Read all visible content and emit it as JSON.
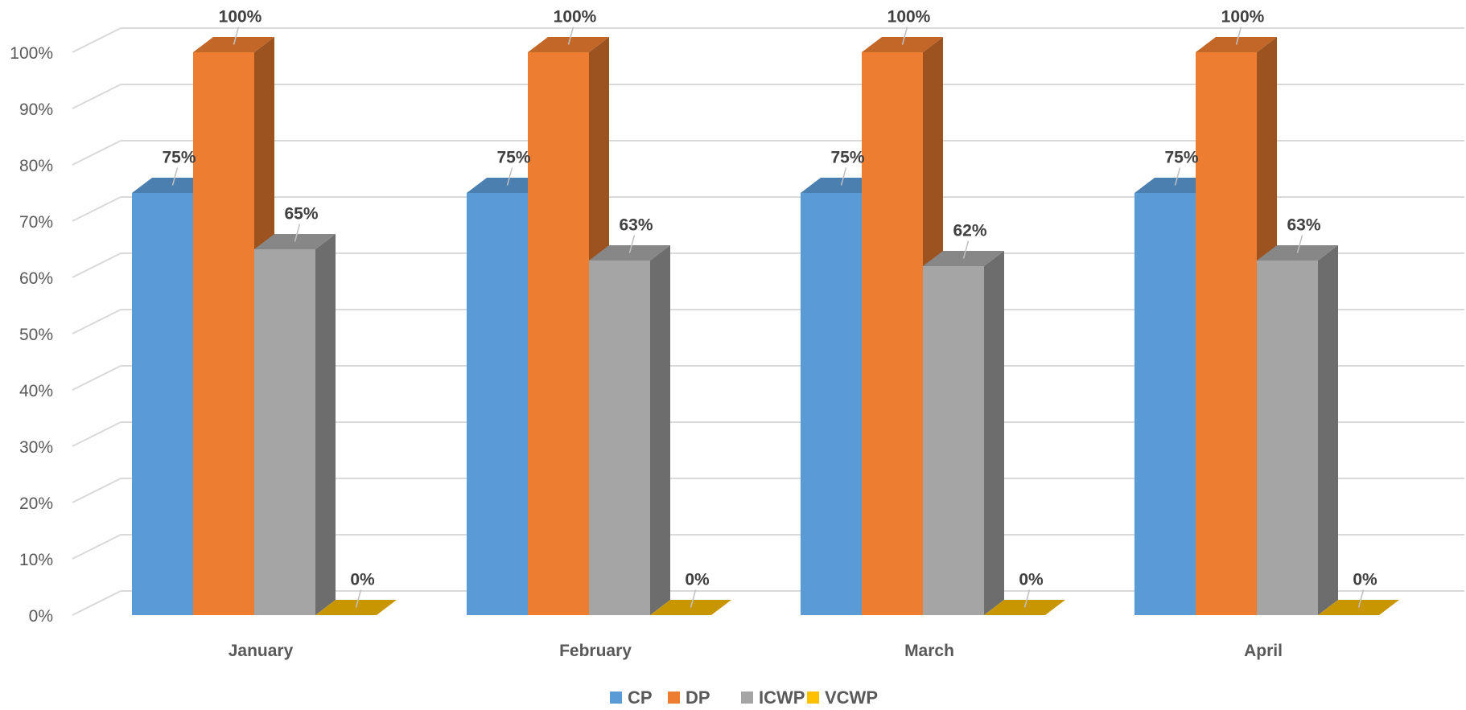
{
  "chart_data": {
    "type": "bar",
    "title": "",
    "xlabel": "",
    "ylabel": "",
    "categories": [
      "January",
      "February",
      "March",
      "April"
    ],
    "series": [
      {
        "name": "CP",
        "values": [
          75,
          75,
          75,
          75
        ],
        "color": "#5B9BD5",
        "data_labels": [
          "75%",
          "75%",
          "75%",
          "75%"
        ]
      },
      {
        "name": "DP",
        "values": [
          100,
          100,
          100,
          100
        ],
        "color": "#ED7D31",
        "data_labels": [
          "100%",
          "100%",
          "100%",
          "100%"
        ]
      },
      {
        "name": "ICWP",
        "values": [
          65,
          63,
          62,
          63
        ],
        "color": "#A5A5A5",
        "data_labels": [
          "65%",
          "63%",
          "62%",
          "63%"
        ]
      },
      {
        "name": "VCWP",
        "values": [
          0,
          0,
          0,
          0
        ],
        "color": "#FFC000",
        "data_labels": [
          "0%",
          "0%",
          "0%",
          "0%"
        ]
      }
    ],
    "ylim": [
      0,
      100
    ],
    "y_ticks": [
      0,
      10,
      20,
      30,
      40,
      50,
      60,
      70,
      80,
      90,
      100
    ],
    "y_tick_labels": [
      "0%",
      "10%",
      "20%",
      "30%",
      "40%",
      "50%",
      "60%",
      "70%",
      "80%",
      "90%",
      "100%"
    ],
    "grid": true,
    "three_d": true,
    "legend": {
      "position": "bottom"
    },
    "colors": {
      "gridline": "#D9D9D9",
      "tick_text": "#595959",
      "label_text": "#404040"
    }
  }
}
